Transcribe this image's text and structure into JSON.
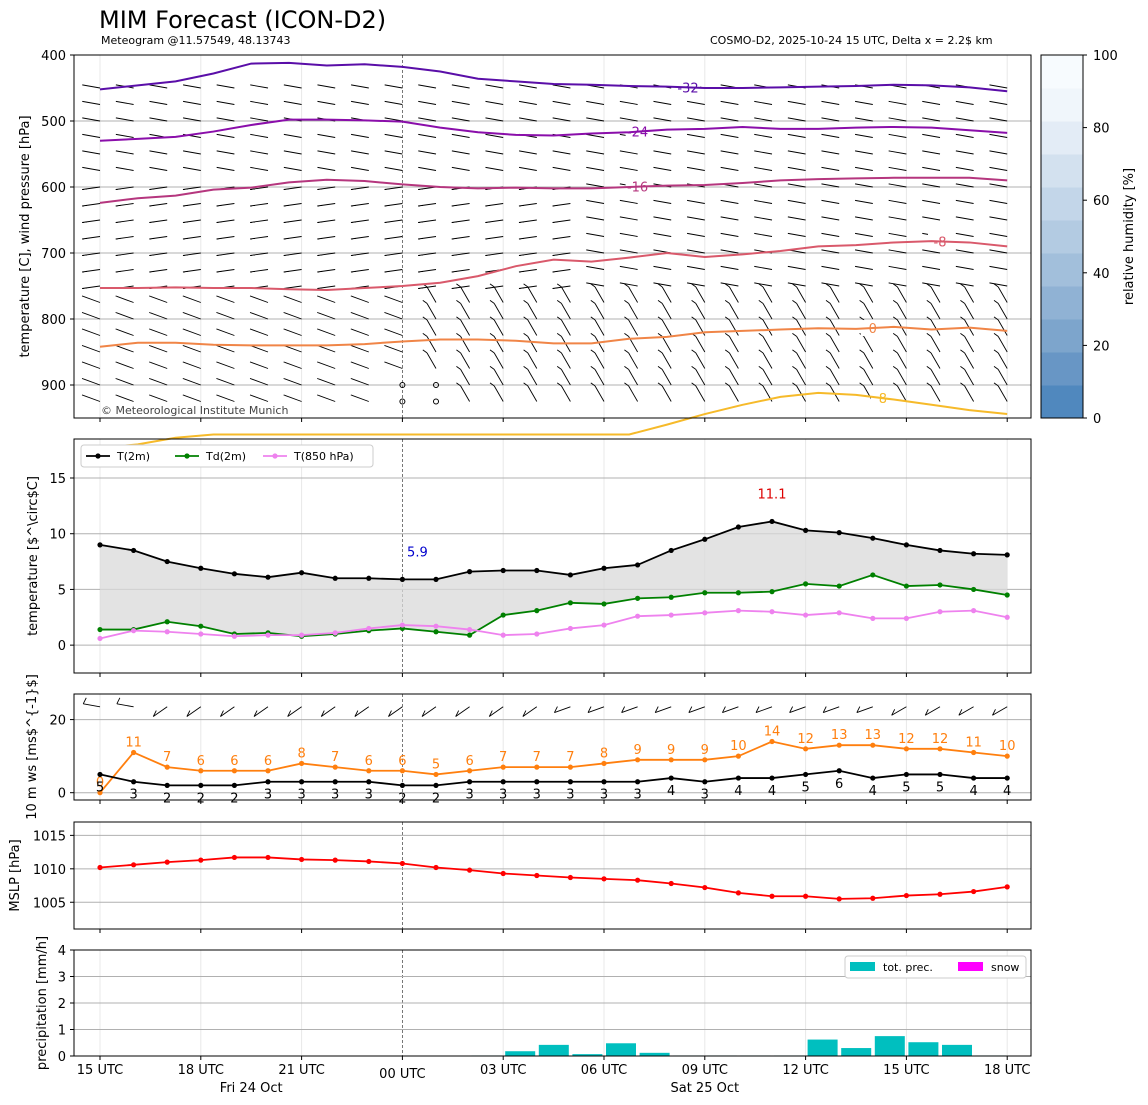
{
  "header": {
    "title": "MIM Forecast (ICON-D2)",
    "subtitle_left": "Meteogram @11.57549, 48.13743",
    "subtitle_right": "COSMO-D2, 2025-10-24 15 UTC, Delta x = 2.2$ km"
  },
  "colors": {
    "t2m": "#000000",
    "td2m": "#008000",
    "t850": "#ee82ee",
    "ws": "#ff7f0e",
    "mslp": "#ff0000",
    "totprec": "#00bfbf",
    "snow": "#ff00ff",
    "rh_light": "#f5f9fd",
    "rh_dark": "#5088be",
    "fill": "#d9d9d9"
  },
  "chart_data": [
    {
      "id": "upper",
      "type": "line",
      "ylabel": "temperature [C], wind pressure [hPa]",
      "ylim": [
        950,
        400
      ],
      "yticks": [
        "400",
        "500",
        "600",
        "700",
        "800",
        "900"
      ],
      "watermark": "© Meteorological Institute Munich",
      "colorbar": {
        "label": "relative humidity [%]",
        "ticks": [
          "0",
          "20",
          "40",
          "60",
          "80",
          "100"
        ]
      },
      "isotherms": [
        {
          "label": "-32",
          "color": "#5a0ea8",
          "p": [
            452,
            446,
            440,
            428,
            413,
            412,
            416,
            414,
            418,
            425,
            436,
            440,
            444,
            445,
            447,
            448,
            450,
            450,
            449,
            448,
            447,
            445,
            446,
            449,
            455
          ]
        },
        {
          "label": "-24",
          "color": "#8a0eaa",
          "p": [
            530,
            527,
            524,
            516,
            506,
            498,
            498,
            499,
            501,
            510,
            517,
            521,
            522,
            519,
            517,
            513,
            512,
            509,
            512,
            512,
            510,
            509,
            510,
            514,
            518
          ]
        },
        {
          "label": "-16",
          "color": "#b5367e",
          "p": [
            624,
            617,
            613,
            604,
            601,
            593,
            589,
            591,
            596,
            600,
            602,
            601,
            602,
            602,
            600,
            598,
            597,
            594,
            590,
            588,
            587,
            586,
            586,
            586,
            590
          ]
        },
        {
          "label": "-8",
          "color": "#d9596b",
          "p": [
            753,
            753,
            752,
            753,
            753,
            755,
            756,
            753,
            750,
            745,
            735,
            720,
            710,
            713,
            707,
            700,
            706,
            702,
            697,
            690,
            688,
            684,
            682,
            684,
            690
          ]
        },
        {
          "label": "0",
          "color": "#f08547",
          "p": [
            842,
            836,
            836,
            839,
            840,
            840,
            840,
            838,
            834,
            831,
            831,
            833,
            837,
            837,
            830,
            827,
            820,
            818,
            816,
            814,
            815,
            812,
            816,
            813,
            818
          ]
        },
        {
          "label": "8",
          "color": "#f6ba2a",
          "p": [
            995,
            990,
            980,
            975,
            975,
            975,
            975,
            975,
            975,
            975,
            975,
            975,
            975,
            975,
            975,
            960,
            944,
            930,
            918,
            912,
            915,
            922,
            930,
            938,
            944
          ]
        }
      ]
    },
    {
      "id": "temperature",
      "type": "line",
      "ylabel": "temperature [$^\\circ$C]",
      "ylim": [
        -2.5,
        18.5
      ],
      "yticks": [
        "0",
        "5",
        "10",
        "15"
      ],
      "legend": [
        "T(2m)",
        "Td(2m)",
        "T(850 hPa)"
      ],
      "min_label": "5.9",
      "max_label": "11.1",
      "series": [
        {
          "name": "T(2m)",
          "values": [
            9.0,
            8.5,
            7.5,
            6.9,
            6.4,
            6.1,
            6.5,
            6.0,
            6.0,
            5.9,
            5.9,
            6.6,
            6.7,
            6.7,
            6.3,
            6.9,
            7.2,
            8.5,
            9.5,
            10.6,
            11.1,
            10.3,
            10.1,
            9.6,
            9.0,
            8.5,
            8.2,
            8.1
          ]
        },
        {
          "name": "Td(2m)",
          "values": [
            1.4,
            1.4,
            2.1,
            1.7,
            1.0,
            1.1,
            0.8,
            1.0,
            1.3,
            1.5,
            1.2,
            0.9,
            2.7,
            3.1,
            3.8,
            3.7,
            4.2,
            4.3,
            4.7,
            4.7,
            4.8,
            5.5,
            5.3,
            6.3,
            5.3,
            5.4,
            5.0,
            4.5
          ]
        },
        {
          "name": "T(850 hPa)",
          "values": [
            0.6,
            1.3,
            1.2,
            1.0,
            0.8,
            0.9,
            0.9,
            1.1,
            1.5,
            1.8,
            1.7,
            1.4,
            0.9,
            1.0,
            1.5,
            1.8,
            2.6,
            2.7,
            2.9,
            3.1,
            3.0,
            2.7,
            2.9,
            2.4,
            2.4,
            3.0,
            3.1,
            2.5
          ]
        }
      ]
    },
    {
      "id": "wind",
      "type": "line",
      "ylabel": "10 m ws [ms$^{-1}$]",
      "ylim": [
        -2,
        27
      ],
      "yticks": [
        "0",
        "20"
      ],
      "series": [
        {
          "name": "gust",
          "values": [
            0,
            11,
            7,
            6,
            6,
            6,
            8,
            7,
            6,
            6,
            5,
            6,
            7,
            7,
            7,
            8,
            9,
            9,
            9,
            10,
            14,
            12,
            13,
            13,
            12,
            12,
            11,
            10
          ],
          "labels": [
            "0",
            "11",
            "7",
            "6",
            "6",
            "6",
            "8",
            "7",
            "6",
            "6",
            "5",
            "6",
            "7",
            "7",
            "7",
            "8",
            "9",
            "9",
            "9",
            "10",
            "14",
            "12",
            "13",
            "13",
            "12",
            "12",
            "11",
            "10"
          ]
        },
        {
          "name": "mean",
          "values": [
            5,
            3,
            2,
            2,
            2,
            3,
            3,
            3,
            3,
            2,
            2,
            3,
            3,
            3,
            3,
            3,
            3,
            4,
            3,
            4,
            4,
            5,
            6,
            4,
            5,
            5,
            4,
            4
          ],
          "labels": [
            "5",
            "3",
            "2",
            "2",
            "2",
            "3",
            "3",
            "3",
            "3",
            "2",
            "2",
            "3",
            "3",
            "3",
            "3",
            "3",
            "3",
            "4",
            "3",
            "4",
            "4",
            "5",
            "6",
            "4",
            "5",
            "5",
            "4",
            "4"
          ]
        }
      ]
    },
    {
      "id": "mslp",
      "type": "line",
      "ylabel": "MSLP [hPa]",
      "ylim": [
        1001,
        1017
      ],
      "yticks": [
        "1005",
        "1010",
        "1015"
      ],
      "series": [
        {
          "name": "MSLP",
          "values": [
            1010.2,
            1010.6,
            1011.0,
            1011.3,
            1011.7,
            1011.7,
            1011.4,
            1011.3,
            1011.1,
            1010.8,
            1010.2,
            1009.8,
            1009.3,
            1009.0,
            1008.7,
            1008.5,
            1008.3,
            1007.8,
            1007.2,
            1006.4,
            1005.9,
            1005.9,
            1005.5,
            1005.6,
            1006.0,
            1006.2,
            1006.6,
            1007.3
          ]
        }
      ]
    },
    {
      "id": "precipitation",
      "type": "bar",
      "ylabel": "precipitation [mm/h]",
      "ylim": [
        0,
        4
      ],
      "yticks": [
        "0",
        "1",
        "2",
        "3",
        "4"
      ],
      "legend": [
        "tot. prec.",
        "snow"
      ],
      "series": [
        {
          "name": "tot. prec.",
          "values": [
            0,
            0,
            0,
            0,
            0,
            0,
            0,
            0,
            0,
            0,
            0,
            0.02,
            0.18,
            0.42,
            0.07,
            0.48,
            0.12,
            0.02,
            0.02,
            0.02,
            0.02,
            0.62,
            0.3,
            0.75,
            0.52,
            0.42,
            0.02,
            0
          ]
        },
        {
          "name": "snow",
          "values": [
            0,
            0,
            0,
            0,
            0,
            0,
            0,
            0,
            0,
            0,
            0,
            0,
            0,
            0,
            0,
            0,
            0,
            0,
            0,
            0,
            0,
            0,
            0,
            0,
            0,
            0,
            0,
            0
          ]
        }
      ]
    }
  ],
  "xaxis": {
    "ticks": [
      "15 UTC",
      "18 UTC",
      "21 UTC",
      "00 UTC",
      "03 UTC",
      "06 UTC",
      "09 UTC",
      "12 UTC",
      "15 UTC",
      "18 UTC"
    ],
    "day1": "Fri 24 Oct",
    "day2": "Sat 25 Oct"
  }
}
